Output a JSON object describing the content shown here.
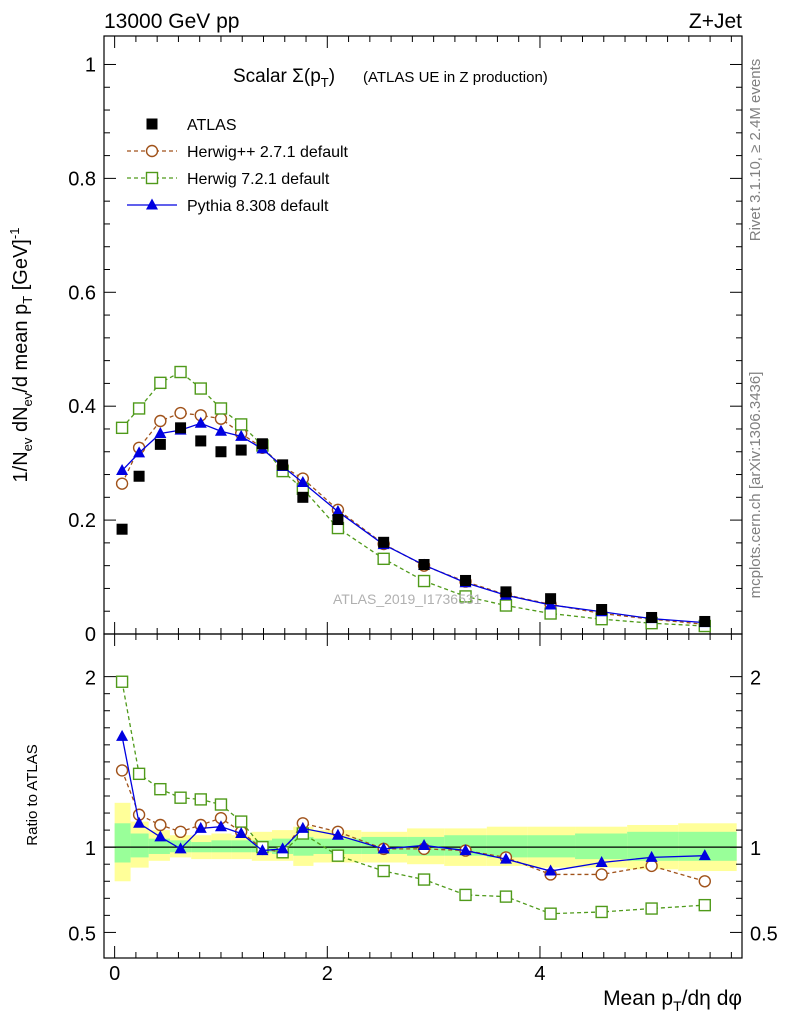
{
  "header": {
    "left": "13000 GeV pp",
    "right": "Z+Jet"
  },
  "side": {
    "rivet": "Rivet 3.1.10, ≥ 2.4M events",
    "mcplots": "mcplots.cern.ch [arXiv:1306.3436]"
  },
  "watermark": "ATLAS_2019_I1736531",
  "colors": {
    "atlas": "#000000",
    "herwigpp": "#a0521a",
    "herwig7": "#4f9a1a",
    "pythia": "#0000e0",
    "band_yellow": "#ffff99",
    "band_green": "#99ff99"
  },
  "chart_data": [
    {
      "type": "scatter",
      "panel": "main",
      "title": "Scalar Σ(p_T) (ATLAS UE in Z production)",
      "ylabel": "1/N_ev dN_ev/d mean p_T [GeV]^-1",
      "xlim": [
        -0.1,
        5.9
      ],
      "ylim": [
        0,
        1.05
      ],
      "yticks": [
        0,
        0.2,
        0.4,
        0.6,
        0.8,
        1
      ],
      "ytick_labels": [
        "0",
        "0.2",
        "0.4",
        "0.6",
        "0.8",
        "1"
      ],
      "grid": false,
      "legend_position": "top-left",
      "x": [
        0.07,
        0.23,
        0.43,
        0.62,
        0.81,
        1.0,
        1.19,
        1.39,
        1.58,
        1.77,
        2.1,
        2.53,
        2.91,
        3.3,
        3.68,
        4.1,
        4.58,
        5.05,
        5.55
      ],
      "series": [
        {
          "name": "ATLAS",
          "marker": "filled-square",
          "connected": false,
          "values": [
            0.184,
            0.277,
            0.333,
            0.362,
            0.339,
            0.32,
            0.323,
            0.334,
            0.297,
            0.24,
            0.201,
            0.161,
            0.122,
            0.094,
            0.074,
            0.062,
            0.043,
            0.029,
            0.022
          ]
        },
        {
          "name": "Herwig++ 2.7.1 default",
          "marker": "open-circle",
          "dash": "dashed",
          "values": [
            0.264,
            0.327,
            0.374,
            0.388,
            0.384,
            0.378,
            0.352,
            0.327,
            0.294,
            0.273,
            0.218,
            0.158,
            0.12,
            0.092,
            0.069,
            0.052,
            0.036,
            0.026,
            0.017
          ]
        },
        {
          "name": "Herwig 7.2.1 default",
          "marker": "open-square",
          "dash": "dashed",
          "values": [
            0.362,
            0.396,
            0.441,
            0.46,
            0.431,
            0.396,
            0.368,
            0.331,
            0.286,
            0.255,
            0.186,
            0.132,
            0.093,
            0.066,
            0.05,
            0.036,
            0.026,
            0.019,
            0.014
          ]
        },
        {
          "name": "Pythia 8.308 default",
          "marker": "filled-triangle",
          "dash": "solid",
          "values": [
            0.287,
            0.318,
            0.352,
            0.358,
            0.37,
            0.356,
            0.347,
            0.325,
            0.294,
            0.266,
            0.215,
            0.157,
            0.121,
            0.09,
            0.068,
            0.051,
            0.039,
            0.027,
            0.02
          ]
        }
      ]
    },
    {
      "type": "line",
      "panel": "ratio",
      "ylabel": "Ratio to ATLAS",
      "xlabel": "Mean p_T/dη dφ",
      "xlim": [
        -0.1,
        5.9
      ],
      "ylim": [
        0.35,
        2.25
      ],
      "yticks": [
        0.5,
        1,
        2
      ],
      "ytick_labels": [
        "0.5",
        "1",
        "2"
      ],
      "xticks": [
        0,
        2,
        4
      ],
      "xtick_labels": [
        "0",
        "2",
        "4"
      ],
      "grid": false,
      "bin_edges": [
        0.0,
        0.15,
        0.32,
        0.52,
        0.72,
        0.91,
        1.1,
        1.29,
        1.48,
        1.68,
        1.87,
        2.32,
        2.75,
        3.1,
        3.5,
        3.88,
        4.33,
        4.82,
        5.3,
        5.85
      ],
      "band_yellow": [
        [
          0.8,
          1.26
        ],
        [
          0.88,
          1.15
        ],
        [
          0.92,
          1.1
        ],
        [
          0.94,
          1.07
        ],
        [
          0.93,
          1.07
        ],
        [
          0.93,
          1.08
        ],
        [
          0.93,
          1.07
        ],
        [
          0.92,
          1.09
        ],
        [
          0.92,
          1.1
        ],
        [
          0.89,
          1.12
        ],
        [
          0.91,
          1.1
        ],
        [
          0.91,
          1.09
        ],
        [
          0.9,
          1.11
        ],
        [
          0.89,
          1.11
        ],
        [
          0.89,
          1.12
        ],
        [
          0.88,
          1.12
        ],
        [
          0.88,
          1.12
        ],
        [
          0.87,
          1.13
        ],
        [
          0.86,
          1.14
        ]
      ],
      "band_green": [
        [
          0.91,
          1.14
        ],
        [
          0.94,
          1.08
        ],
        [
          0.96,
          1.05
        ],
        [
          0.97,
          1.04
        ],
        [
          0.97,
          1.03
        ],
        [
          0.97,
          1.04
        ],
        [
          0.97,
          1.04
        ],
        [
          0.97,
          1.04
        ],
        [
          0.96,
          1.05
        ],
        [
          0.95,
          1.06
        ],
        [
          0.96,
          1.05
        ],
        [
          0.96,
          1.06
        ],
        [
          0.95,
          1.06
        ],
        [
          0.95,
          1.07
        ],
        [
          0.94,
          1.07
        ],
        [
          0.94,
          1.07
        ],
        [
          0.93,
          1.08
        ],
        [
          0.92,
          1.09
        ],
        [
          0.92,
          1.09
        ]
      ],
      "series": [
        {
          "name": "Herwig++ 2.7.1 default",
          "values": [
            1.45,
            1.19,
            1.13,
            1.09,
            1.13,
            1.17,
            1.09,
            0.99,
            0.97,
            1.14,
            1.09,
            0.99,
            0.99,
            0.98,
            0.94,
            0.84,
            0.84,
            0.89,
            0.8
          ]
        },
        {
          "name": "Herwig 7.2.1 default",
          "values": [
            1.97,
            1.43,
            1.34,
            1.29,
            1.28,
            1.25,
            1.15,
            1.0,
            0.97,
            1.08,
            0.95,
            0.86,
            0.81,
            0.72,
            0.71,
            0.61,
            0.62,
            0.64,
            0.66
          ]
        },
        {
          "name": "Pythia 8.308 default",
          "values": [
            1.65,
            1.14,
            1.06,
            0.99,
            1.11,
            1.12,
            1.08,
            0.98,
            0.99,
            1.11,
            1.07,
            0.99,
            1.01,
            0.98,
            0.93,
            0.86,
            0.91,
            0.94,
            0.95
          ]
        }
      ]
    }
  ]
}
